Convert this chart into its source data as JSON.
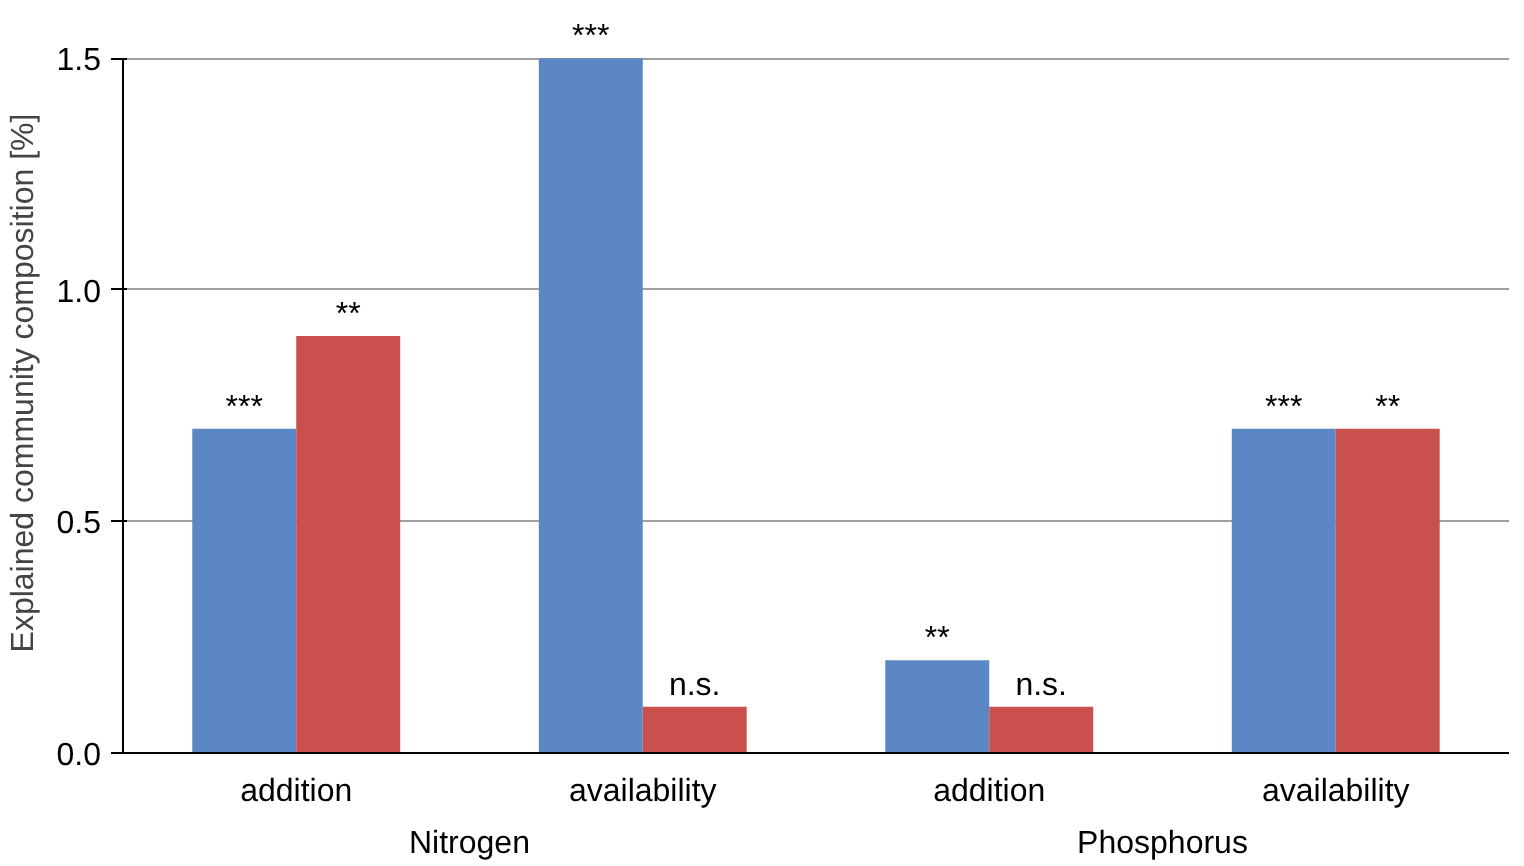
{
  "chart_data": {
    "type": "bar",
    "ylabel": "Explained community composition [%]",
    "categories": [
      "addition",
      "availability",
      "addition",
      "availability"
    ],
    "series": [
      {
        "color": "#5b87c5",
        "values": [
          0.7,
          1.5,
          0.2,
          0.7
        ],
        "value_labels": [
          "***",
          "***",
          "**",
          "***"
        ]
      },
      {
        "color": "#c9504d",
        "values": [
          0.9,
          0.1,
          0.1,
          0.7
        ],
        "value_labels": [
          "**",
          "n.s.",
          "n.s.",
          "**"
        ]
      }
    ],
    "annotations": [
      "Nitrogen",
      "Phosphorus"
    ],
    "ylim": [
      0,
      1.5
    ],
    "yticks": [
      {
        "value": 0,
        "label": "0.0"
      },
      0.5,
      {
        "value": 1,
        "label": "1.0"
      },
      1.5
    ],
    "grid": "y"
  }
}
